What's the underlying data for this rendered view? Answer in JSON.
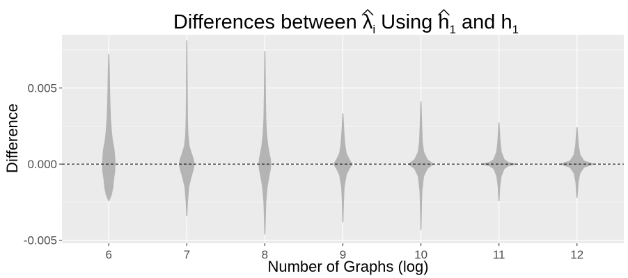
{
  "chart_data": {
    "type": "violin",
    "title": "Differences between λ̂i Using ĥ1 and h1",
    "title_parts": {
      "prefix": "Differences between ",
      "lambda": "λ",
      "lambda_sub": "i",
      "middle": " Using ",
      "h_hat": "h",
      "h_hat_sub": "1",
      "and_text": " and ",
      "h_plain": "h",
      "h_plain_sub": "1"
    },
    "xlabel": "Number of Graphs (log)",
    "ylabel": "Difference",
    "categories": [
      "6",
      "7",
      "8",
      "9",
      "10",
      "11",
      "12"
    ],
    "x_values": [
      6,
      7,
      8,
      9,
      10,
      11,
      12
    ],
    "xlim": [
      5.4,
      12.6
    ],
    "ylim": [
      -0.0052,
      0.0085
    ],
    "y_ticks": [
      -0.005,
      0.0,
      0.005
    ],
    "y_tick_labels": [
      "-0.005",
      "0.000",
      "0.005"
    ],
    "reference_line": 0,
    "grid": true,
    "colors": {
      "panel_background": "#ebebeb",
      "grid_major": "#ffffff",
      "violin_fill": "#b4b4b4",
      "reference_line": "#000000",
      "tick_label": "#4d4d4d"
    },
    "violins": [
      {
        "x": 6,
        "min": -0.0024,
        "max": 0.0072,
        "profile": [
          [
            -0.0024,
            0.0
          ],
          [
            -0.002,
            0.35
          ],
          [
            -0.0015,
            0.55
          ],
          [
            -0.001,
            0.65
          ],
          [
            -0.0005,
            0.8
          ],
          [
            0.0,
            0.85
          ],
          [
            0.0005,
            0.8
          ],
          [
            0.001,
            0.7
          ],
          [
            0.0015,
            0.5
          ],
          [
            0.002,
            0.38
          ],
          [
            0.0025,
            0.3
          ],
          [
            0.003,
            0.22
          ],
          [
            0.004,
            0.15
          ],
          [
            0.005,
            0.1
          ],
          [
            0.006,
            0.07
          ],
          [
            0.0072,
            0.0
          ]
        ]
      },
      {
        "x": 7,
        "min": -0.0034,
        "max": 0.0081,
        "profile": [
          [
            -0.0034,
            0.0
          ],
          [
            -0.0025,
            0.08
          ],
          [
            -0.0015,
            0.25
          ],
          [
            -0.0008,
            0.6
          ],
          [
            -0.0003,
            0.9
          ],
          [
            0.0,
            1.0
          ],
          [
            0.0003,
            0.9
          ],
          [
            0.0008,
            0.55
          ],
          [
            0.0012,
            0.3
          ],
          [
            0.002,
            0.14
          ],
          [
            0.003,
            0.08
          ],
          [
            0.0045,
            0.05
          ],
          [
            0.006,
            0.03
          ],
          [
            0.0081,
            0.0
          ]
        ]
      },
      {
        "x": 8,
        "min": -0.0046,
        "max": 0.0074,
        "profile": [
          [
            -0.0046,
            0.0
          ],
          [
            -0.0035,
            0.06
          ],
          [
            -0.0025,
            0.12
          ],
          [
            -0.0015,
            0.3
          ],
          [
            -0.0008,
            0.55
          ],
          [
            -0.0003,
            0.75
          ],
          [
            0.0,
            0.8
          ],
          [
            0.0003,
            0.75
          ],
          [
            0.0008,
            0.55
          ],
          [
            0.0012,
            0.4
          ],
          [
            0.002,
            0.22
          ],
          [
            0.003,
            0.12
          ],
          [
            0.0045,
            0.07
          ],
          [
            0.006,
            0.04
          ],
          [
            0.0074,
            0.0
          ]
        ]
      },
      {
        "x": 9,
        "min": -0.0038,
        "max": 0.0033,
        "profile": [
          [
            -0.0038,
            0.0
          ],
          [
            -0.0025,
            0.07
          ],
          [
            -0.0015,
            0.16
          ],
          [
            -0.0007,
            0.45
          ],
          [
            -0.0003,
            0.85
          ],
          [
            0.0,
            1.25
          ],
          [
            0.0003,
            0.85
          ],
          [
            0.0007,
            0.45
          ],
          [
            0.0012,
            0.28
          ],
          [
            0.002,
            0.14
          ],
          [
            0.0033,
            0.0
          ]
        ]
      },
      {
        "x": 10,
        "min": -0.0043,
        "max": 0.0041,
        "profile": [
          [
            -0.0043,
            0.0
          ],
          [
            -0.003,
            0.05
          ],
          [
            -0.0018,
            0.12
          ],
          [
            -0.0008,
            0.35
          ],
          [
            -0.0003,
            0.85
          ],
          [
            0.0,
            1.65
          ],
          [
            0.0003,
            0.85
          ],
          [
            0.0008,
            0.35
          ],
          [
            0.0015,
            0.18
          ],
          [
            0.0025,
            0.1
          ],
          [
            0.0041,
            0.0
          ]
        ]
      },
      {
        "x": 11,
        "min": -0.0024,
        "max": 0.0027,
        "profile": [
          [
            -0.0024,
            0.0
          ],
          [
            -0.0015,
            0.1
          ],
          [
            -0.0008,
            0.28
          ],
          [
            -0.0003,
            0.7
          ],
          [
            -0.0001,
            1.3
          ],
          [
            0.0,
            2.3
          ],
          [
            0.0001,
            1.3
          ],
          [
            0.0003,
            0.7
          ],
          [
            0.0008,
            0.3
          ],
          [
            0.0015,
            0.14
          ],
          [
            0.0027,
            0.0
          ]
        ]
      },
      {
        "x": 12,
        "min": -0.0022,
        "max": 0.0024,
        "profile": [
          [
            -0.0022,
            0.0
          ],
          [
            -0.0012,
            0.14
          ],
          [
            -0.0006,
            0.38
          ],
          [
            -0.0002,
            0.95
          ],
          [
            0.0,
            2.2
          ],
          [
            0.0002,
            0.95
          ],
          [
            0.0006,
            0.4
          ],
          [
            0.0012,
            0.18
          ],
          [
            0.0024,
            0.0
          ]
        ]
      }
    ]
  }
}
